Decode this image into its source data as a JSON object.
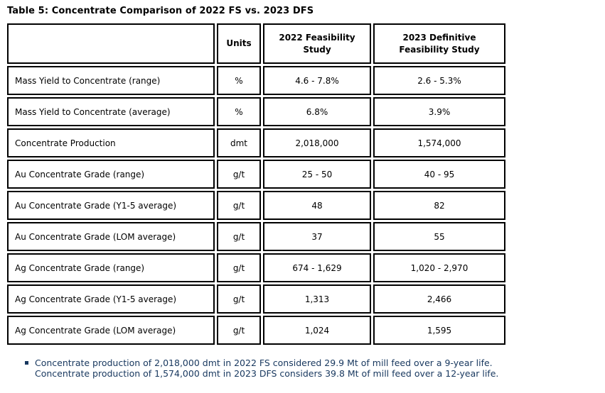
{
  "title": "Table 5: Concentrate Comparison of 2022 FS vs. 2023 DFS",
  "colors": {
    "border": "#000000",
    "text": "#000000",
    "footnote_text": "#17375E",
    "bullet": "#17375E",
    "background": "#FFFFFF"
  },
  "table": {
    "headers": {
      "corner": "",
      "units": "Units",
      "fs2022": "2022 Feasibility\nStudy",
      "dfs2023": "2023 Definitive\nFeasibility Study"
    },
    "rows": [
      {
        "label": "Mass Yield to Concentrate (range)",
        "units": "%",
        "fs2022": "4.6 - 7.8%",
        "dfs2023": "2.6 - 5.3%"
      },
      {
        "label": "Mass Yield to Concentrate (average)",
        "units": "%",
        "fs2022": "6.8%",
        "dfs2023": "3.9%"
      },
      {
        "label": "Concentrate Production",
        "units": "dmt",
        "fs2022": "2,018,000",
        "dfs2023": "1,574,000"
      },
      {
        "label": "Au Concentrate Grade (range)",
        "units": "g/t",
        "fs2022": "25 - 50",
        "dfs2023": "40 - 95"
      },
      {
        "label": "Au Concentrate Grade (Y1-5 average)",
        "units": "g/t",
        "fs2022": "48",
        "dfs2023": "82"
      },
      {
        "label": "Au Concentrate Grade (LOM average)",
        "units": "g/t",
        "fs2022": "37",
        "dfs2023": "55"
      },
      {
        "label": "Ag Concentrate Grade (range)",
        "units": "g/t",
        "fs2022": "674 - 1,629",
        "dfs2023": "1,020 - 2,970"
      },
      {
        "label": "Ag Concentrate Grade (Y1-5 average)",
        "units": "g/t",
        "fs2022": "1,313",
        "dfs2023": "2,466"
      },
      {
        "label": "Ag Concentrate Grade (LOM average)",
        "units": "g/t",
        "fs2022": "1,024",
        "dfs2023": "1,595"
      }
    ]
  },
  "footnote": {
    "lines": [
      "Concentrate production of 2,018,000 dmt in 2022 FS considered 29.9 Mt of mill feed over a 9-year life.",
      "Concentrate production of 1,574,000 dmt in 2023 DFS considers 39.8 Mt of mill feed over a 12-year life."
    ]
  }
}
